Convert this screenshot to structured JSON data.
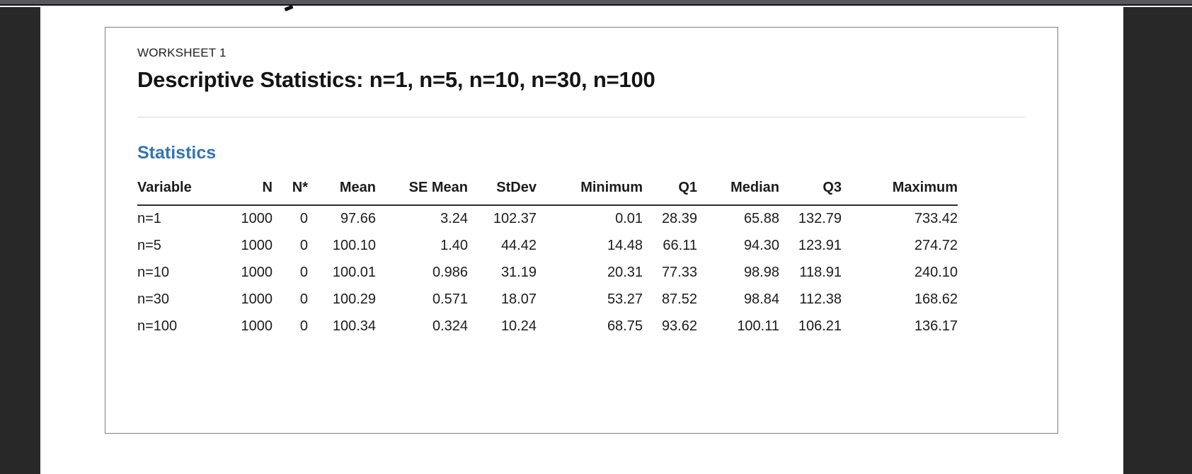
{
  "colors": {
    "accent_blue": "#3375b5",
    "side_band": "#282828",
    "topbar": "#56585b",
    "card_border": "#7e7e7e",
    "header_rule": "#2e2e2e",
    "divider": "#d9d9d9"
  },
  "card": {
    "worksheet_label": "WORKSHEET 1",
    "title": "Descriptive Statistics: n=1, n=5, n=10, n=30, n=100",
    "section_heading": "Statistics"
  },
  "statistics_table": {
    "columns": [
      "Variable",
      "N",
      "N*",
      "Mean",
      "SE Mean",
      "StDev",
      "Minimum",
      "Q1",
      "Median",
      "Q3",
      "Maximum"
    ],
    "rows": [
      [
        "n=1",
        "1000",
        "0",
        "97.66",
        "3.24",
        "102.37",
        "0.01",
        "28.39",
        "65.88",
        "132.79",
        "733.42"
      ],
      [
        "n=5",
        "1000",
        "0",
        "100.10",
        "1.40",
        "44.42",
        "14.48",
        "66.11",
        "94.30",
        "123.91",
        "274.72"
      ],
      [
        "n=10",
        "1000",
        "0",
        "100.01",
        "0.986",
        "31.19",
        "20.31",
        "77.33",
        "98.98",
        "118.91",
        "240.10"
      ],
      [
        "n=30",
        "1000",
        "0",
        "100.29",
        "0.571",
        "18.07",
        "53.27",
        "87.52",
        "98.84",
        "112.38",
        "168.62"
      ],
      [
        "n=100",
        "1000",
        "0",
        "100.34",
        "0.324",
        "10.24",
        "68.75",
        "93.62",
        "100.11",
        "106.21",
        "136.17"
      ]
    ]
  }
}
